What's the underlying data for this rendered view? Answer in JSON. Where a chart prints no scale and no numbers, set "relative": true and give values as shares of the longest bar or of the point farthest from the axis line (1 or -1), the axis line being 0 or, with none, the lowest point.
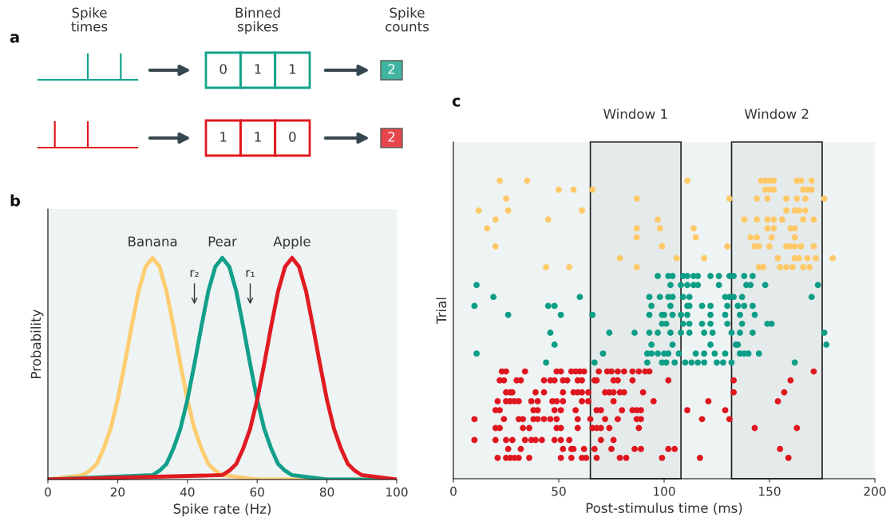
{
  "chart_data": [
    {
      "type": "other",
      "title": "a",
      "annotations": [
        "Spike\ntimes",
        "Binned\nspikes",
        "Spike\ncounts",
        "0",
        "1",
        "1",
        "1",
        "1",
        "0"
      ],
      "colors": [
        "#14a38b",
        "#e0181f"
      ],
      "totals": [
        "2",
        "2"
      ]
    },
    {
      "type": "line",
      "title": "b",
      "xlabel": "Spike rate (Hz)",
      "ylabel": "Probability",
      "relative": true,
      "tick_labels": "x",
      "xlim": [
        0,
        100
      ],
      "xticks": [
        0,
        20,
        40,
        60,
        80,
        100
      ],
      "series": [
        {
          "name": "Banana",
          "color": "#fdcd70",
          "x": [
            0,
            10,
            12,
            14,
            16,
            18,
            20,
            22,
            24,
            26,
            28,
            30,
            32,
            34,
            36,
            38,
            40,
            42,
            44,
            46,
            48,
            50,
            60,
            100
          ],
          "values": [
            0,
            0.02,
            0.04,
            0.07,
            0.14,
            0.23,
            0.36,
            0.52,
            0.69,
            0.85,
            0.96,
            1,
            0.96,
            0.85,
            0.69,
            0.52,
            0.36,
            0.23,
            0.14,
            0.07,
            0.04,
            0.02,
            0,
            0
          ]
        },
        {
          "name": "Pear",
          "color": "#12a08a",
          "x": [
            0,
            30,
            32,
            34,
            36,
            38,
            40,
            42,
            44,
            46,
            48,
            50,
            52,
            54,
            56,
            58,
            60,
            62,
            64,
            66,
            68,
            70,
            80,
            100
          ],
          "values": [
            0,
            0.02,
            0.04,
            0.07,
            0.14,
            0.23,
            0.36,
            0.52,
            0.69,
            0.85,
            0.96,
            1,
            0.96,
            0.85,
            0.69,
            0.52,
            0.36,
            0.23,
            0.14,
            0.07,
            0.04,
            0.02,
            0,
            0
          ]
        },
        {
          "name": "Apple",
          "color": "#e01b22",
          "x": [
            0,
            50,
            52,
            54,
            56,
            58,
            60,
            62,
            64,
            66,
            68,
            70,
            72,
            74,
            76,
            78,
            80,
            82,
            84,
            86,
            88,
            90,
            100
          ],
          "values": [
            0,
            0.02,
            0.04,
            0.07,
            0.14,
            0.23,
            0.36,
            0.52,
            0.69,
            0.85,
            0.96,
            1,
            0.96,
            0.85,
            0.69,
            0.52,
            0.36,
            0.23,
            0.14,
            0.07,
            0.04,
            0.02,
            0
          ]
        }
      ],
      "annotations": [
        "r₂",
        "r₁"
      ]
    },
    {
      "type": "scatter",
      "title": "c",
      "xlabel": "Post-stimulus time (ms)",
      "ylabel": "Trial",
      "relative": true,
      "tick_labels": "x",
      "xlim": [
        0,
        200
      ],
      "xticks": [
        0,
        50,
        100,
        150,
        200
      ],
      "bands": [
        {
          "axis": "x",
          "from": 65,
          "to": 108,
          "label": "Window 1",
          "color": "#222222"
        },
        {
          "axis": "x",
          "from": 132,
          "to": 175,
          "label": "Window 2",
          "color": "#222222"
        }
      ],
      "series": [
        {
          "color": "#fec966",
          "x": [
            44,
            55,
            87,
            145,
            147,
            155,
            158,
            161,
            166,
            169,
            79,
            106,
            119,
            154,
            162,
            164,
            168,
            172,
            180,
            20,
            99,
            130,
            143,
            145,
            150,
            158,
            160,
            162,
            165,
            171,
            87,
            115,
            141,
            144,
            151,
            162,
            16,
            87,
            98,
            114,
            149,
            152,
            160,
            162,
            20,
            45,
            97,
            138,
            144,
            149,
            152,
            156,
            166,
            171,
            12,
            26,
            61,
            158,
            162,
            164,
            167,
            25,
            87,
            131,
            144,
            149,
            158,
            163,
            167,
            176,
            50,
            57,
            66,
            148,
            150,
            152,
            166,
            168,
            170,
            22,
            35,
            111,
            146,
            148,
            150,
            152,
            163,
            165,
            170
          ],
          "values": [
            0.71,
            0.71,
            0.71,
            0.71,
            0.71,
            0.71,
            0.71,
            0.71,
            0.71,
            0.71,
            0.74,
            0.74,
            0.74,
            0.74,
            0.74,
            0.74,
            0.74,
            0.74,
            0.74,
            0.78,
            0.78,
            0.78,
            0.78,
            0.78,
            0.78,
            0.78,
            0.78,
            0.78,
            0.78,
            0.78,
            0.81,
            0.81,
            0.81,
            0.81,
            0.81,
            0.81,
            0.84,
            0.84,
            0.84,
            0.84,
            0.84,
            0.84,
            0.84,
            0.84,
            0.87,
            0.87,
            0.87,
            0.87,
            0.87,
            0.87,
            0.87,
            0.87,
            0.87,
            0.87,
            0.9,
            0.9,
            0.9,
            0.9,
            0.9,
            0.9,
            0.9,
            0.94,
            0.94,
            0.94,
            0.94,
            0.94,
            0.94,
            0.94,
            0.94,
            0.94,
            0.97,
            0.97,
            0.97,
            0.97,
            0.97,
            0.97,
            0.97,
            0.97,
            0.97,
            1,
            1,
            1,
            1,
            1,
            1,
            1,
            1,
            1,
            1
          ]
        },
        {
          "color": "#0e9e87",
          "x": [
            44,
            67,
            92,
            99,
            101,
            105,
            110,
            113,
            116,
            119,
            125,
            128,
            132,
            162,
            11,
            71,
            92,
            94,
            97,
            100,
            102,
            107,
            115,
            119,
            124,
            129,
            136,
            138,
            140,
            145,
            48,
            94,
            104,
            122,
            134,
            135,
            177,
            46,
            74,
            86,
            93,
            97,
            103,
            108,
            112,
            119,
            123,
            132,
            136,
            142,
            176,
            99,
            101,
            109,
            112,
            118,
            122,
            130,
            137,
            149,
            151,
            26,
            51,
            66,
            93,
            99,
            100,
            104,
            108,
            111,
            122,
            129,
            136,
            143,
            10,
            45,
            48,
            94,
            103,
            111,
            112,
            118,
            122,
            130,
            135,
            138,
            142,
            19,
            60,
            93,
            98,
            102,
            104,
            109,
            112,
            129,
            131,
            133,
            137,
            170,
            11,
            103,
            108,
            111,
            114,
            116,
            126,
            139,
            141,
            148,
            173,
            97,
            102,
            104,
            109,
            111,
            114,
            116,
            122,
            126,
            131,
            133,
            138,
            142
          ],
          "values": [
            0.39,
            0.39,
            0.39,
            0.39,
            0.39,
            0.39,
            0.39,
            0.39,
            0.39,
            0.39,
            0.39,
            0.39,
            0.39,
            0.39,
            0.42,
            0.42,
            0.42,
            0.42,
            0.42,
            0.42,
            0.42,
            0.42,
            0.42,
            0.42,
            0.42,
            0.42,
            0.42,
            0.42,
            0.42,
            0.42,
            0.45,
            0.45,
            0.45,
            0.45,
            0.45,
            0.45,
            0.45,
            0.49,
            0.49,
            0.49,
            0.49,
            0.49,
            0.49,
            0.49,
            0.49,
            0.49,
            0.49,
            0.49,
            0.49,
            0.49,
            0.49,
            0.52,
            0.52,
            0.52,
            0.52,
            0.52,
            0.52,
            0.52,
            0.52,
            0.52,
            0.52,
            0.55,
            0.55,
            0.55,
            0.55,
            0.55,
            0.55,
            0.55,
            0.55,
            0.55,
            0.55,
            0.55,
            0.55,
            0.55,
            0.58,
            0.58,
            0.58,
            0.58,
            0.58,
            0.58,
            0.58,
            0.58,
            0.58,
            0.58,
            0.58,
            0.58,
            0.58,
            0.61,
            0.61,
            0.61,
            0.61,
            0.61,
            0.61,
            0.61,
            0.61,
            0.61,
            0.61,
            0.61,
            0.61,
            0.61,
            0.65,
            0.65,
            0.65,
            0.65,
            0.65,
            0.65,
            0.65,
            0.65,
            0.65,
            0.65,
            0.65,
            0.68,
            0.68,
            0.68,
            0.68,
            0.68,
            0.68,
            0.68,
            0.68,
            0.68,
            0.68,
            0.68,
            0.68,
            0.68
          ]
        },
        {
          "color": "#e0161f",
          "x": [
            21,
            25,
            27,
            29,
            31,
            36,
            51,
            56,
            61,
            63,
            68,
            79,
            82,
            99,
            117,
            159,
            26,
            32,
            52,
            56,
            57,
            62,
            67,
            75,
            86,
            89,
            102,
            105,
            155,
            10,
            20,
            25,
            28,
            34,
            37,
            39,
            42,
            48,
            51,
            55,
            70,
            76,
            20,
            22,
            33,
            36,
            49,
            51,
            59,
            66,
            68,
            70,
            74,
            88,
            143,
            163,
            10,
            24,
            31,
            33,
            38,
            40,
            43,
            46,
            49,
            59,
            65,
            72,
            78,
            87,
            89,
            118,
            131,
            20,
            22,
            38,
            40,
            48,
            51,
            58,
            68,
            70,
            80,
            85,
            87,
            89,
            111,
            129,
            21,
            25,
            27,
            29,
            31,
            37,
            40,
            47,
            49,
            52,
            61,
            64,
            76,
            95,
            121,
            154,
            25,
            27,
            28,
            39,
            43,
            52,
            57,
            59,
            61,
            64,
            72,
            74,
            76,
            79,
            81,
            90,
            133,
            157,
            22,
            24,
            30,
            32,
            43,
            46,
            48,
            52,
            54,
            59,
            61,
            67,
            68,
            76,
            78,
            85,
            102,
            133,
            160,
            23,
            25,
            34,
            49,
            51,
            56,
            58,
            60,
            62,
            69,
            73,
            75,
            78,
            81,
            85,
            88,
            91,
            93,
            171
          ],
          "values": [
            0.07,
            0.07,
            0.07,
            0.07,
            0.07,
            0.07,
            0.07,
            0.07,
            0.07,
            0.07,
            0.07,
            0.07,
            0.07,
            0.07,
            0.07,
            0.07,
            0.1,
            0.1,
            0.1,
            0.1,
            0.1,
            0.1,
            0.1,
            0.1,
            0.1,
            0.1,
            0.1,
            0.1,
            0.1,
            0.13,
            0.13,
            0.13,
            0.13,
            0.13,
            0.13,
            0.13,
            0.13,
            0.13,
            0.13,
            0.13,
            0.13,
            0.13,
            0.17,
            0.17,
            0.17,
            0.17,
            0.17,
            0.17,
            0.17,
            0.17,
            0.17,
            0.17,
            0.17,
            0.17,
            0.17,
            0.17,
            0.2,
            0.2,
            0.2,
            0.2,
            0.2,
            0.2,
            0.2,
            0.2,
            0.2,
            0.2,
            0.2,
            0.2,
            0.2,
            0.2,
            0.2,
            0.2,
            0.2,
            0.23,
            0.23,
            0.23,
            0.23,
            0.23,
            0.23,
            0.23,
            0.23,
            0.23,
            0.23,
            0.23,
            0.23,
            0.23,
            0.23,
            0.23,
            0.26,
            0.26,
            0.26,
            0.26,
            0.26,
            0.26,
            0.26,
            0.26,
            0.26,
            0.26,
            0.26,
            0.26,
            0.26,
            0.26,
            0.26,
            0.26,
            0.29,
            0.29,
            0.29,
            0.29,
            0.29,
            0.29,
            0.29,
            0.29,
            0.29,
            0.29,
            0.29,
            0.29,
            0.29,
            0.29,
            0.29,
            0.29,
            0.29,
            0.29,
            0.33,
            0.33,
            0.33,
            0.33,
            0.33,
            0.33,
            0.33,
            0.33,
            0.33,
            0.33,
            0.33,
            0.33,
            0.33,
            0.33,
            0.33,
            0.33,
            0.33,
            0.33,
            0.33,
            0.36,
            0.36,
            0.36,
            0.36,
            0.36,
            0.36,
            0.36,
            0.36,
            0.36,
            0.36,
            0.36,
            0.36,
            0.36,
            0.36,
            0.36,
            0.36,
            0.36,
            0.36,
            0.36
          ]
        }
      ]
    }
  ]
}
